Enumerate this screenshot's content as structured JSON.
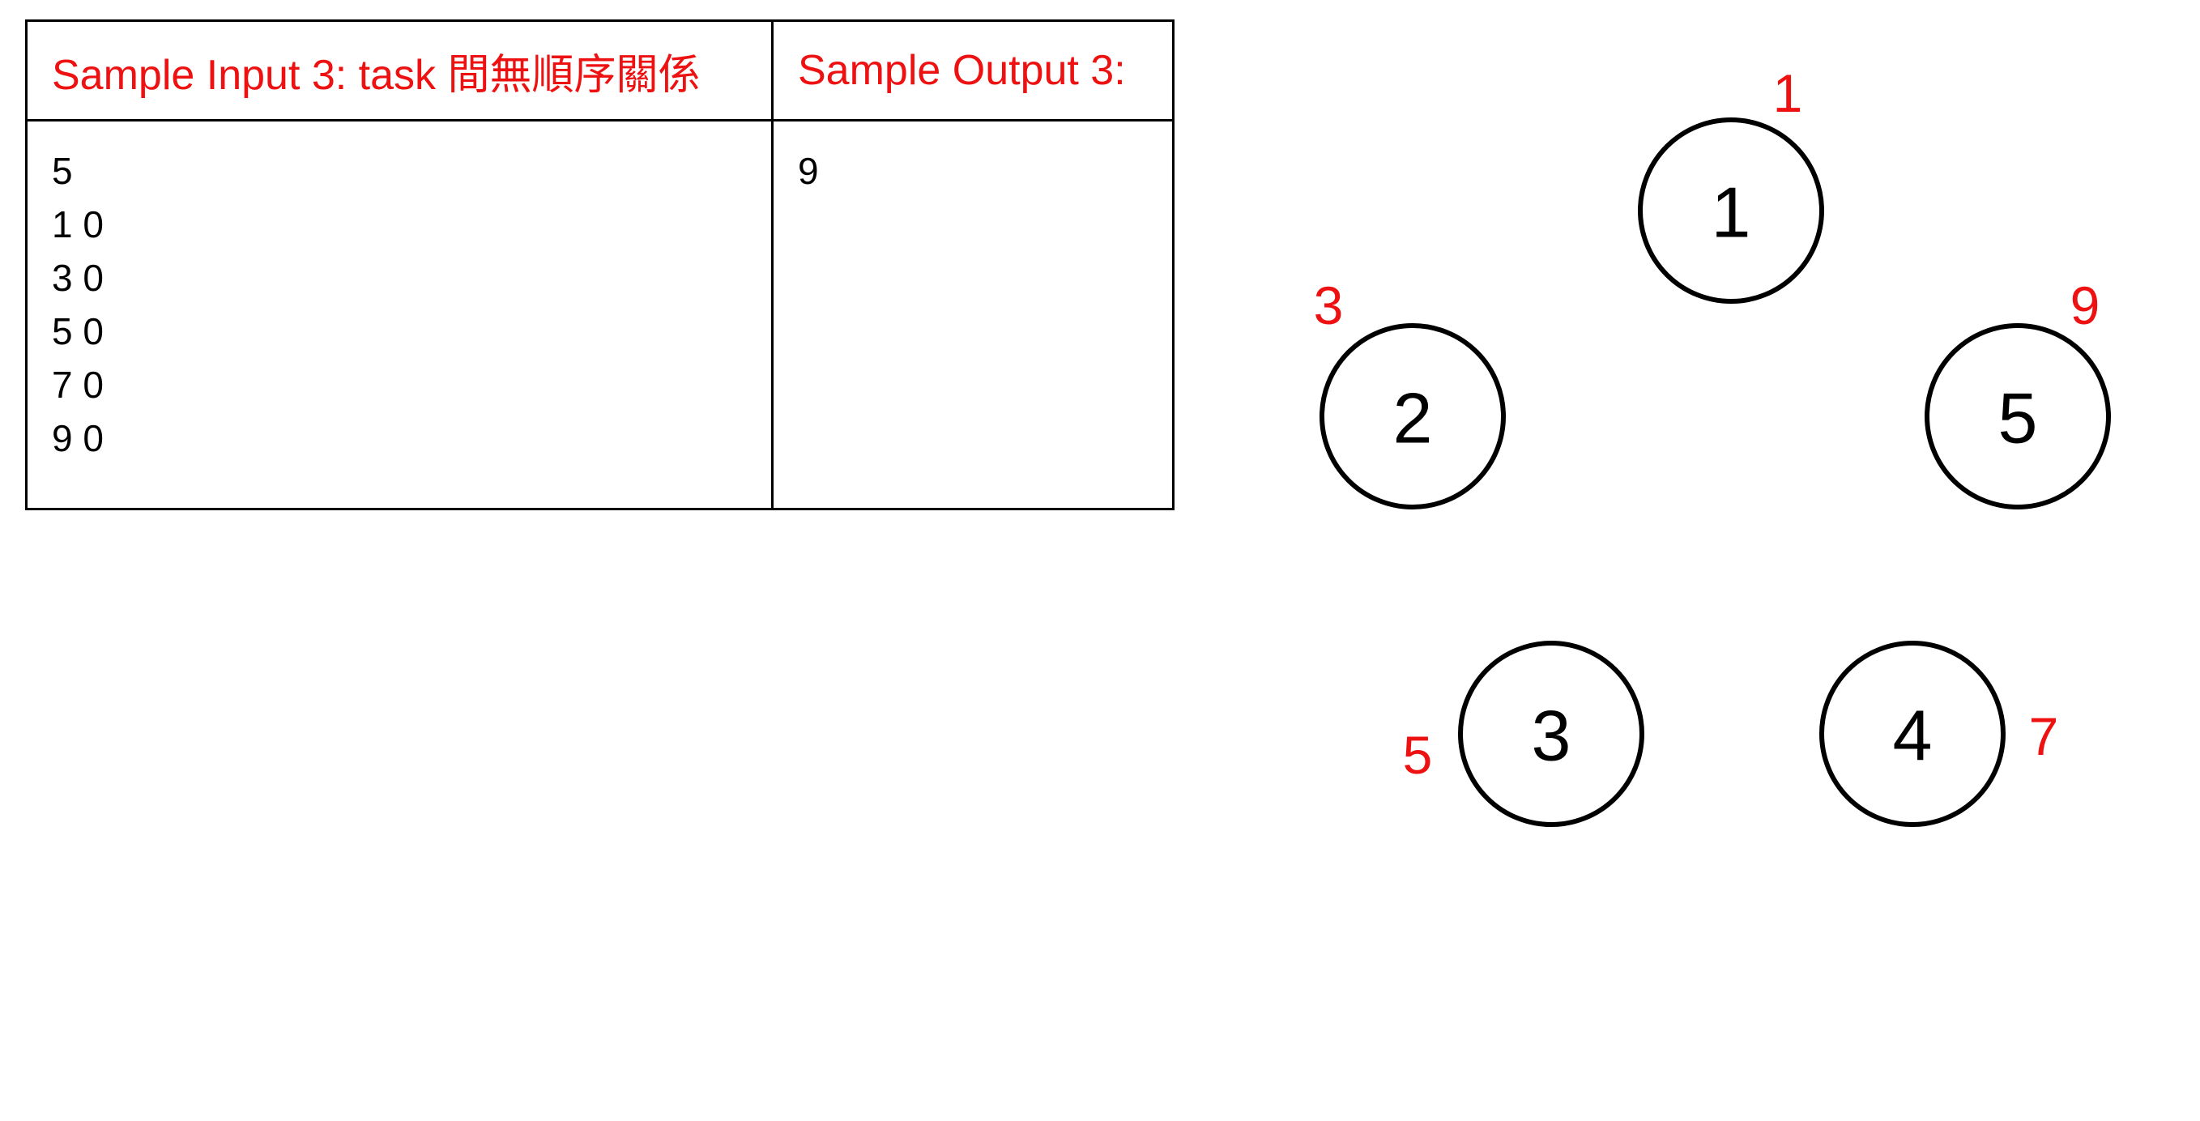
{
  "table": {
    "input_header": "Sample Input 3: task 間無順序關係",
    "output_header": "Sample Output 3:",
    "input_lines": [
      "5",
      "1 0",
      "3 0",
      "5 0",
      "7 0",
      "9 0"
    ],
    "output_lines": [
      "9"
    ]
  },
  "graph": {
    "nodes": [
      {
        "id": "1",
        "weight": "1"
      },
      {
        "id": "2",
        "weight": "3"
      },
      {
        "id": "3",
        "weight": "5"
      },
      {
        "id": "4",
        "weight": "7"
      },
      {
        "id": "5",
        "weight": "9"
      }
    ]
  },
  "colors": {
    "header_text": "#ee1111",
    "weight_text": "#ee1111",
    "body_text": "#000000",
    "border": "#000000"
  }
}
